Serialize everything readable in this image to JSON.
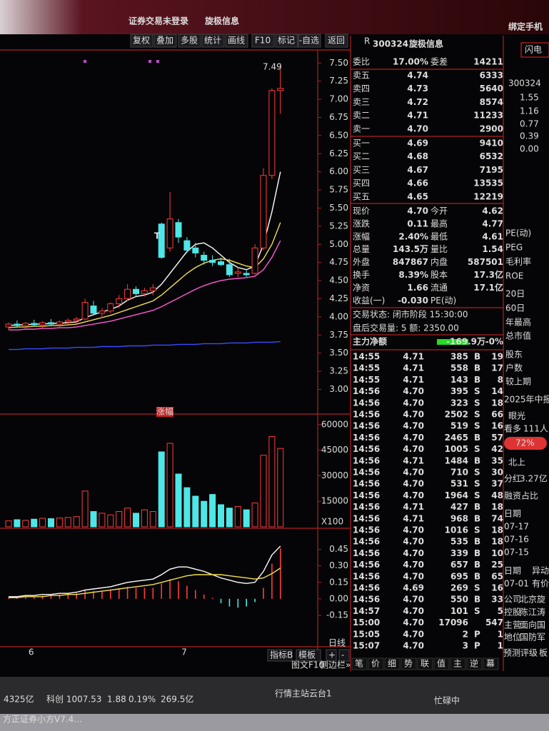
{
  "title_bar": {
    "left": "证券交易未登录",
    "stock": "旋极信息",
    "right": "绑定手机"
  },
  "toolbar": [
    "复权",
    "叠加",
    "多股",
    "统计",
    "画线",
    "F10",
    "标记",
    "-自选",
    "返回"
  ],
  "chart_data": [
    {
      "type": "candlestick",
      "up_color": "#ff3b3b",
      "down_color": "#4ee6e6",
      "categories": [
        null,
        "6",
        null,
        null,
        null,
        null,
        null,
        null,
        null,
        null,
        null,
        null,
        null,
        null,
        null,
        null,
        null,
        null,
        null,
        "7",
        null,
        null,
        null,
        null,
        null,
        null,
        null,
        null,
        null,
        null,
        null,
        null,
        null
      ],
      "open": [
        3.86,
        3.9,
        3.88,
        3.91,
        3.89,
        3.92,
        3.9,
        3.93,
        3.95,
        3.97,
        4.15,
        4.05,
        4.08,
        4.18,
        4.25,
        4.38,
        4.32,
        4.36,
        5.28,
        4.95,
        5.3,
        5.05,
        4.95,
        4.85,
        4.78,
        4.76,
        4.72,
        4.6,
        4.6,
        4.6,
        4.95,
        5.95,
        7.12
      ],
      "high": [
        3.92,
        3.95,
        3.93,
        3.96,
        3.94,
        3.97,
        3.95,
        3.98,
        4.0,
        4.25,
        4.22,
        4.12,
        4.2,
        4.3,
        4.45,
        4.42,
        4.4,
        4.45,
        5.3,
        5.72,
        5.35,
        5.1,
        5.02,
        4.9,
        4.85,
        4.82,
        4.8,
        4.68,
        4.66,
        5.0,
        6.05,
        7.15,
        7.49
      ],
      "low": [
        3.82,
        3.85,
        3.84,
        3.87,
        3.85,
        3.88,
        3.86,
        3.89,
        3.9,
        3.95,
        4.02,
        3.98,
        4.05,
        4.12,
        4.22,
        4.28,
        4.28,
        4.3,
        4.8,
        4.9,
        5.02,
        4.88,
        4.82,
        4.72,
        4.7,
        4.7,
        4.55,
        4.55,
        4.55,
        4.58,
        4.92,
        5.9,
        6.8
      ],
      "close": [
        3.9,
        3.88,
        3.91,
        3.89,
        3.92,
        3.9,
        3.93,
        3.95,
        3.97,
        4.2,
        4.05,
        4.08,
        4.18,
        4.25,
        4.38,
        4.32,
        4.36,
        4.4,
        4.82,
        5.35,
        5.1,
        4.92,
        4.88,
        4.78,
        4.75,
        4.72,
        4.58,
        4.62,
        4.58,
        4.95,
        5.95,
        7.12,
        7.15
      ],
      "series": [
        {
          "color": "#ffffff",
          "values": [
            3.88,
            3.89,
            3.89,
            3.9,
            3.9,
            3.91,
            3.91,
            3.92,
            3.93,
            3.99,
            4.03,
            4.07,
            4.1,
            4.15,
            4.23,
            4.28,
            4.3,
            4.34,
            4.45,
            4.6,
            4.75,
            4.9,
            5.0,
            5.02,
            4.95,
            4.85,
            4.75,
            4.68,
            4.65,
            4.7,
            5.0,
            5.45,
            6.0
          ]
        },
        {
          "color": "#f5e04a",
          "values": [
            3.85,
            3.86,
            3.86,
            3.87,
            3.87,
            3.88,
            3.88,
            3.89,
            3.9,
            3.93,
            3.96,
            3.99,
            4.02,
            4.06,
            4.1,
            4.14,
            4.18,
            4.22,
            4.3,
            4.4,
            4.5,
            4.6,
            4.68,
            4.74,
            4.78,
            4.8,
            4.78,
            4.74,
            4.7,
            4.68,
            4.8,
            5.0,
            5.3
          ]
        },
        {
          "color": "#ff5ad2",
          "values": [
            3.82,
            3.82,
            3.83,
            3.83,
            3.84,
            3.84,
            3.85,
            3.85,
            3.86,
            3.88,
            3.9,
            3.92,
            3.94,
            3.97,
            4.0,
            4.03,
            4.06,
            4.09,
            4.14,
            4.2,
            4.26,
            4.32,
            4.38,
            4.43,
            4.47,
            4.5,
            4.52,
            4.53,
            4.54,
            4.56,
            4.65,
            4.82,
            5.05
          ]
        },
        {
          "color": "#3a4cff",
          "values": [
            3.55,
            3.55,
            3.56,
            3.56,
            3.56,
            3.57,
            3.57,
            3.57,
            3.58,
            3.58,
            3.58,
            3.59,
            3.59,
            3.59,
            3.6,
            3.6,
            3.6,
            3.61,
            3.61,
            3.61,
            3.62,
            3.62,
            3.62,
            3.63,
            3.63,
            3.63,
            3.64,
            3.64,
            3.64,
            3.65,
            3.65,
            3.65,
            3.66
          ]
        }
      ],
      "ylim": [
        2.66,
        7.66
      ],
      "yticks": [
        {
          "value": 7.5,
          "label": "7.50"
        },
        7.25,
        {
          "value": 7,
          "label": "7.00"
        },
        6.75,
        {
          "value": 6.5,
          "label": "6.50"
        },
        6.25,
        {
          "value": 6,
          "label": "6.00"
        },
        5.75,
        {
          "value": 5.5,
          "label": "5.50"
        },
        5.25,
        {
          "value": 5,
          "label": "5.00"
        },
        4.75,
        {
          "value": 4.5,
          "label": "4.50"
        },
        4.25,
        {
          "value": 4,
          "label": "4.00"
        },
        3.75,
        {
          "value": 3.5,
          "label": "3.50"
        },
        3.25,
        {
          "value": 3,
          "label": "3.00"
        }
      ],
      "annotations": {
        "high": "7.49",
        "mark": "T",
        "badge": "涨幅"
      }
    },
    {
      "type": "bar",
      "values": [
        3500,
        4200,
        3800,
        4500,
        5000,
        4800,
        5200,
        5500,
        6000,
        21000,
        9000,
        8000,
        7000,
        9000,
        11000,
        8000,
        10000,
        9000,
        44000,
        49000,
        31000,
        23000,
        18000,
        15000,
        19000,
        13000,
        11000,
        12000,
        10000,
        14000,
        42000,
        53000,
        46000
      ],
      "ylim": [
        0,
        62000
      ],
      "yticks": [
        60000,
        45000,
        30000,
        15000
      ],
      "unit_label": "X100"
    },
    {
      "type": "macd",
      "values": [
        0.01,
        0.01,
        0.02,
        0.02,
        0.03,
        0.03,
        0.04,
        0.05,
        0.05,
        0.08,
        0.07,
        0.07,
        0.08,
        0.09,
        0.11,
        0.1,
        0.1,
        0.1,
        0.14,
        0.18,
        0.16,
        0.12,
        0.08,
        0.04,
        0.01,
        -0.04,
        -0.07,
        -0.08,
        -0.07,
        -0.03,
        0.1,
        0.32,
        0.46
      ],
      "series": [
        {
          "color": "#ffffff",
          "values": [
            0.02,
            0.02,
            0.03,
            0.03,
            0.04,
            0.04,
            0.05,
            0.05,
            0.06,
            0.08,
            0.09,
            0.1,
            0.11,
            0.13,
            0.15,
            0.16,
            0.17,
            0.18,
            0.22,
            0.27,
            0.29,
            0.29,
            0.27,
            0.25,
            0.22,
            0.19,
            0.17,
            0.15,
            0.14,
            0.15,
            0.25,
            0.4,
            0.48
          ]
        },
        {
          "color": "#f5e04a",
          "values": [
            0.01,
            0.01,
            0.02,
            0.02,
            0.02,
            0.03,
            0.03,
            0.04,
            0.04,
            0.05,
            0.06,
            0.07,
            0.08,
            0.09,
            0.1,
            0.11,
            0.12,
            0.13,
            0.15,
            0.17,
            0.19,
            0.21,
            0.22,
            0.22,
            0.22,
            0.22,
            0.21,
            0.2,
            0.19,
            0.18,
            0.19,
            0.23,
            0.28
          ]
        }
      ],
      "ylim": [
        -0.43,
        0.61
      ],
      "yticks": [
        0.45,
        {
          "value": 0.3,
          "label": "0.30"
        },
        0.15,
        {
          "value": 0,
          "label": "0.00"
        },
        -0.15
      ]
    }
  ],
  "chart_footer": {
    "period": "日线",
    "buttons": [
      "指标B",
      "模板",
      "+",
      "-"
    ],
    "links": [
      "图文F10",
      "侧边栏»"
    ]
  },
  "quote": {
    "flag": "R",
    "code": "300324",
    "name": "旋极信息",
    "ratio": [
      "委比",
      "17.00%",
      "委差",
      "14211"
    ],
    "asks": [
      [
        "卖五",
        "4.74",
        "6333"
      ],
      [
        "卖四",
        "4.73",
        "5640"
      ],
      [
        "卖三",
        "4.72",
        "8574"
      ],
      [
        "卖二",
        "4.71",
        "11233"
      ],
      [
        "卖一",
        "4.70",
        "2900"
      ]
    ],
    "bids": [
      [
        "买一",
        "4.69",
        "9410"
      ],
      [
        "买二",
        "4.68",
        "6532"
      ],
      [
        "买三",
        "4.67",
        "7195"
      ],
      [
        "买四",
        "4.66",
        "13535"
      ],
      [
        "买五",
        "4.65",
        "12219"
      ]
    ],
    "stats": [
      [
        "现价",
        "4.70",
        "今开",
        "4.62"
      ],
      [
        "涨跌",
        "0.11",
        "最高",
        "4.77"
      ],
      [
        "涨幅",
        "2.40%",
        "最低",
        "4.61"
      ],
      [
        "总量",
        "143.5万",
        "量比",
        "1.54"
      ],
      [
        "外盘",
        "847867",
        "内盘",
        "587501"
      ],
      [
        "换手",
        "8.39%",
        "股本",
        "17.3亿"
      ],
      [
        "净资",
        "1.66",
        "流通",
        "17.1亿"
      ],
      [
        "收益(一)",
        "-0.030",
        "PE(动)",
        ""
      ]
    ],
    "status": [
      "交易状态: 闭市阶段 15:30:00",
      "盘后交易量: 5  额: 2350.00"
    ],
    "main_flow": [
      "主力净额",
      "-169.9万",
      "-0%"
    ],
    "ticks": [
      [
        "14:55",
        "4.71",
        "385",
        "B",
        "19"
      ],
      [
        "14:55",
        "4.71",
        "558",
        "B",
        "17"
      ],
      [
        "14:55",
        "4.71",
        "143",
        "B",
        "8"
      ],
      [
        "14:56",
        "4.70",
        "395",
        "S",
        "14"
      ],
      [
        "14:56",
        "4.70",
        "323",
        "S",
        "18"
      ],
      [
        "14:56",
        "4.70",
        "2502",
        "S",
        "66"
      ],
      [
        "14:56",
        "4.70",
        "519",
        "S",
        "16"
      ],
      [
        "14:56",
        "4.70",
        "2465",
        "B",
        "57"
      ],
      [
        "14:56",
        "4.70",
        "1005",
        "S",
        "42"
      ],
      [
        "14:56",
        "4.71",
        "1484",
        "B",
        "35"
      ],
      [
        "14:56",
        "4.70",
        "710",
        "S",
        "30"
      ],
      [
        "14:56",
        "4.70",
        "531",
        "S",
        "37"
      ],
      [
        "14:56",
        "4.70",
        "1964",
        "S",
        "48"
      ],
      [
        "14:56",
        "4.71",
        "427",
        "B",
        "18"
      ],
      [
        "14:56",
        "4.71",
        "968",
        "B",
        "74"
      ],
      [
        "14:56",
        "4.70",
        "1016",
        "S",
        "18"
      ],
      [
        "14:56",
        "4.70",
        "535",
        "B",
        "18"
      ],
      [
        "14:56",
        "4.70",
        "339",
        "B",
        "10"
      ],
      [
        "14:56",
        "4.70",
        "657",
        "B",
        "25"
      ],
      [
        "14:56",
        "4.70",
        "695",
        "B",
        "65"
      ],
      [
        "14:56",
        "4.69",
        "269",
        "S",
        "16"
      ],
      [
        "14:56",
        "4.70",
        "550",
        "B",
        "33"
      ],
      [
        "14:57",
        "4.70",
        "101",
        "S",
        "5"
      ],
      [
        "15:00",
        "4.70",
        "17096",
        "",
        "547"
      ],
      [
        "15:05",
        "4.70",
        "2",
        "P",
        "1"
      ],
      [
        "15:07",
        "4.70",
        "3",
        "P",
        "1"
      ]
    ],
    "tabs": [
      "笔",
      "价",
      "细",
      "势",
      "联",
      "值",
      "主",
      "逆",
      "幕"
    ]
  },
  "side": [
    "闪电",
    "300324",
    "1.55",
    "1.16",
    "0.77",
    "0.39",
    "0.00",
    "PE(动)",
    "PEG",
    "毛利率",
    "ROE",
    "20日",
    "60日",
    "年最高",
    "总市值",
    "股东",
    "户数",
    "较上期",
    "2025年中报",
    "眼光",
    "看多",
    "111人",
    "72%",
    "北上",
    "分红",
    "3.27亿",
    "融资占比",
    "日期",
    "07-17",
    "07-16",
    "07-15",
    "日期",
    "异动",
    "07-01",
    "有价",
    "公司",
    "北京旋",
    "控股",
    "陈江涛",
    "主营",
    "面向国",
    "地位",
    "国防军",
    "预测评级",
    "板"
  ],
  "taskbar": [
    "4325亿",
    "科创 1007.53",
    "1.88",
    "0.19%",
    "269.5亿",
    "行情主站云台1",
    "忙碌中",
    "方正证券小方V7.4..."
  ]
}
